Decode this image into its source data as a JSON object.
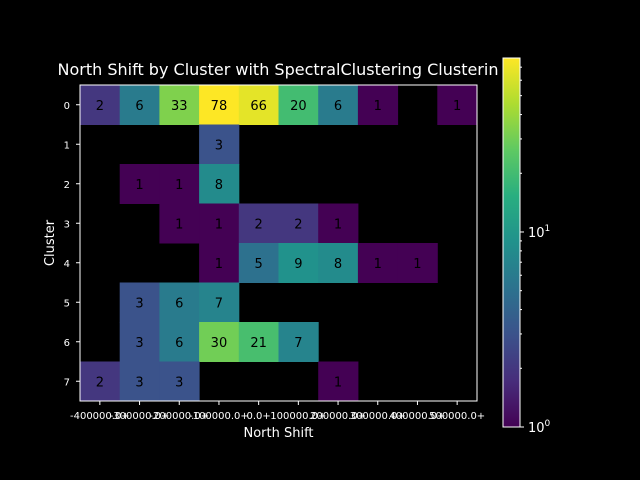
{
  "chart_data": {
    "type": "heatmap",
    "title": "North Shift by Cluster with SpectralClustering Clusterin",
    "xlabel": "North Shift",
    "ylabel": "Cluster",
    "x_tick_labels": [
      "-400000.0+",
      "-300000.0+",
      "-200000.0+",
      "-100000.0+",
      "0.0+",
      "100000.0+",
      "200000.0+",
      "300000.0+",
      "400000.0+",
      "500000.0+"
    ],
    "y_tick_labels": [
      "0",
      "1",
      "2",
      "3",
      "4",
      "5",
      "6",
      "7"
    ],
    "values": [
      [
        2,
        6,
        33,
        78,
        66,
        20,
        6,
        1,
        null,
        1
      ],
      [
        null,
        null,
        null,
        3,
        null,
        null,
        null,
        null,
        null,
        null
      ],
      [
        null,
        1,
        1,
        8,
        null,
        null,
        null,
        null,
        null,
        null
      ],
      [
        null,
        null,
        1,
        1,
        2,
        2,
        1,
        null,
        null,
        null
      ],
      [
        null,
        null,
        null,
        1,
        5,
        9,
        8,
        1,
        1,
        null
      ],
      [
        null,
        3,
        6,
        7,
        null,
        null,
        null,
        null,
        null,
        null
      ],
      [
        null,
        3,
        6,
        30,
        21,
        7,
        null,
        null,
        null,
        null
      ],
      [
        2,
        3,
        3,
        null,
        null,
        null,
        1,
        null,
        null,
        null
      ]
    ],
    "colorbar": {
      "scale": "log",
      "range": [
        1,
        78
      ],
      "tick_labels": [
        "10^0",
        "10^1"
      ],
      "colormap": "viridis"
    },
    "grid": false,
    "legend": "none",
    "colors": {
      "background": "#000000",
      "text": "#ffffff",
      "cell_text": "#000000"
    }
  }
}
